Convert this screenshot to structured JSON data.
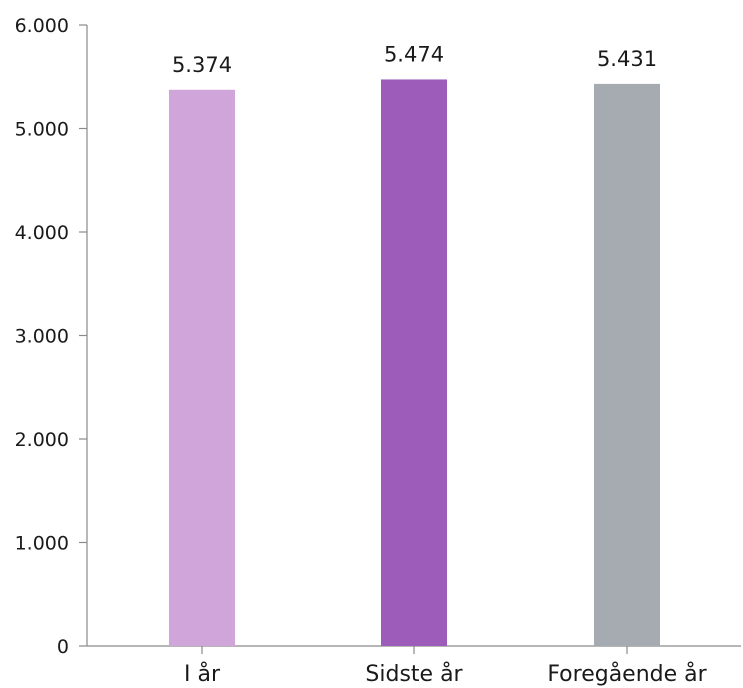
{
  "chart_data": {
    "type": "bar",
    "categories": [
      "I år",
      "Sidste år",
      "Foregående år"
    ],
    "values": [
      5374,
      5474,
      5431
    ],
    "value_labels": [
      "5.374",
      "5.474",
      "5.431"
    ],
    "colors": [
      "#cfa5da",
      "#9d5cb9",
      "#a5abb0"
    ],
    "yticks": [
      0,
      1000,
      2000,
      3000,
      4000,
      5000,
      6000
    ],
    "ytick_labels": [
      "0",
      "1.000",
      "2.000",
      "3.000",
      "4.000",
      "5.000",
      "6.000"
    ],
    "ylim": [
      0,
      6000
    ],
    "grid": false,
    "title": "",
    "xlabel": "",
    "ylabel": ""
  }
}
